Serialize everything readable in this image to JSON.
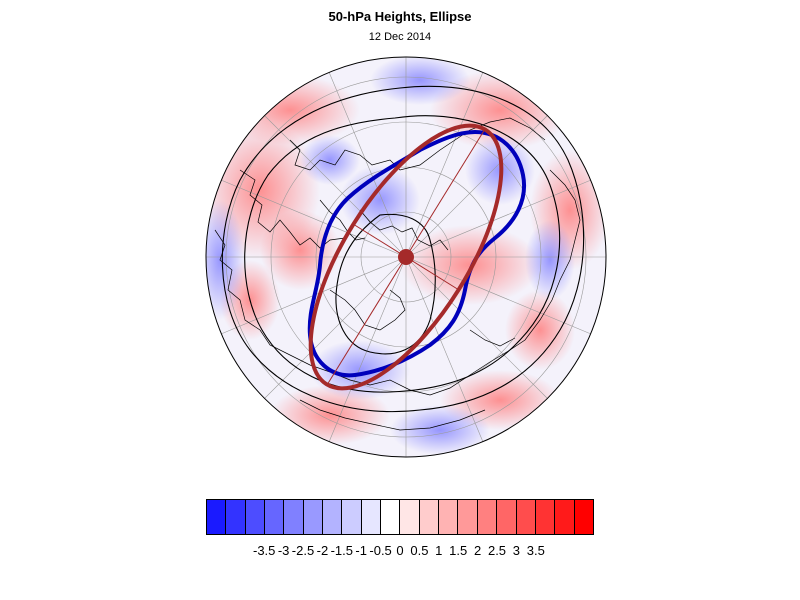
{
  "title": "50-hPa Heights, Ellipse",
  "subtitle": "12 Dec 2014",
  "colorbar": {
    "colors": [
      "#1a1aff",
      "#3333ff",
      "#4d4dff",
      "#6666ff",
      "#8080ff",
      "#9999ff",
      "#b3b3ff",
      "#ccccff",
      "#e6e6ff",
      "#ffffff",
      "#ffe6e6",
      "#ffcccc",
      "#ffb3b3",
      "#ff9999",
      "#ff8080",
      "#ff6666",
      "#ff4d4d",
      "#ff3333",
      "#ff1a1a",
      "#ff0000"
    ],
    "labels": [
      "-3.5",
      "-3",
      "-2.5",
      "-2",
      "-1.5",
      "-1",
      "-0.5",
      "0",
      "0.5",
      "1",
      "1.5",
      "2",
      "2.5",
      "3",
      "3.5"
    ]
  },
  "map": {
    "projection": "north polar stereographic",
    "observed_contour_color": "#0000bb",
    "ellipse_color": "#a52a2a",
    "height_contour_color": "#000000"
  }
}
